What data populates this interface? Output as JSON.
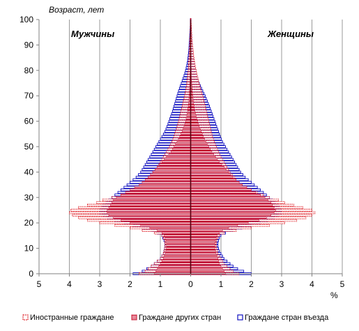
{
  "chart_data": {
    "type": "bar",
    "orientation": "horizontal-population-pyramid",
    "title": "",
    "ylabel": "Возраст, лет",
    "xlabel": "%",
    "left_label": "Мужчины",
    "right_label": "Женщины",
    "xlim": [
      -5,
      5
    ],
    "ylim": [
      0,
      100
    ],
    "x_ticks": [
      "5",
      "4",
      "3",
      "2",
      "1",
      "0",
      "1",
      "2",
      "3",
      "4",
      "5"
    ],
    "x_tick_values": [
      -5,
      -4,
      -3,
      -2,
      -1,
      0,
      1,
      2,
      3,
      4,
      5
    ],
    "y_ticks": [
      "0",
      "10",
      "20",
      "30",
      "40",
      "50",
      "60",
      "70",
      "80",
      "90",
      "100"
    ],
    "y_tick_values": [
      0,
      10,
      20,
      30,
      40,
      50,
      60,
      70,
      80,
      90,
      100
    ],
    "grid": "vertical",
    "legend_position": "bottom",
    "ages_anchor": [
      0,
      1,
      2,
      3,
      4,
      5,
      6,
      7,
      8,
      9,
      10,
      11,
      12,
      13,
      14,
      15,
      16,
      17,
      18,
      19,
      20,
      21,
      22,
      23,
      24,
      25,
      26,
      27,
      28,
      29,
      30,
      31,
      32,
      33,
      34,
      35,
      36,
      37,
      38,
      40,
      42,
      44,
      46,
      48,
      50,
      52,
      54,
      56,
      58,
      60,
      62,
      64,
      66,
      68,
      70,
      72,
      74,
      76,
      78,
      80,
      82,
      84,
      86,
      88,
      90,
      92,
      94,
      96,
      98,
      100
    ],
    "series": [
      {
        "name": "Иностранные граждане",
        "color": "#d9000a",
        "style": "dashed-outline",
        "male": [
          1.7,
          1.5,
          1.4,
          1.3,
          1.2,
          1.1,
          1.0,
          0.95,
          0.9,
          0.88,
          0.86,
          0.85,
          0.85,
          0.86,
          0.9,
          0.95,
          1.2,
          1.6,
          2.0,
          2.5,
          3.0,
          3.4,
          3.7,
          3.9,
          4.0,
          3.95,
          3.7,
          3.4,
          3.1,
          2.9,
          2.6,
          2.3,
          2.1,
          1.9,
          1.7,
          1.6,
          1.5,
          1.45,
          1.4,
          1.25,
          1.1,
          1.0,
          0.9,
          0.8,
          0.7,
          0.62,
          0.55,
          0.5,
          0.45,
          0.4,
          0.36,
          0.32,
          0.28,
          0.24,
          0.2,
          0.17,
          0.14,
          0.12,
          0.1,
          0.08,
          0.07,
          0.06,
          0.05,
          0.04,
          0.03,
          0.03,
          0.02,
          0.02,
          0.01,
          0.01
        ],
        "female": [
          1.6,
          1.4,
          1.3,
          1.2,
          1.1,
          1.05,
          1.0,
          0.95,
          0.9,
          0.88,
          0.86,
          0.85,
          0.85,
          0.86,
          0.9,
          0.95,
          1.1,
          1.5,
          2.0,
          2.6,
          3.1,
          3.5,
          3.8,
          4.0,
          4.1,
          4.0,
          3.7,
          3.4,
          3.1,
          2.9,
          2.6,
          2.4,
          2.2,
          2.0,
          1.85,
          1.7,
          1.6,
          1.5,
          1.45,
          1.3,
          1.2,
          1.1,
          1.0,
          0.92,
          0.85,
          0.78,
          0.72,
          0.68,
          0.64,
          0.6,
          0.56,
          0.52,
          0.48,
          0.44,
          0.4,
          0.35,
          0.3,
          0.26,
          0.22,
          0.18,
          0.15,
          0.12,
          0.1,
          0.08,
          0.06,
          0.05,
          0.04,
          0.03,
          0.02,
          0.01
        ]
      },
      {
        "name": "Граждане других стран",
        "color": "#c8102e",
        "style": "hatched-fill",
        "male": [
          1.2,
          1.15,
          1.1,
          1.05,
          1.0,
          0.95,
          0.9,
          0.87,
          0.84,
          0.82,
          0.8,
          0.8,
          0.8,
          0.82,
          0.85,
          0.88,
          0.95,
          1.1,
          1.35,
          1.65,
          2.0,
          2.3,
          2.55,
          2.7,
          2.75,
          2.75,
          2.7,
          2.65,
          2.6,
          2.55,
          2.45,
          2.3,
          2.15,
          2.0,
          1.85,
          1.7,
          1.6,
          1.5,
          1.4,
          1.25,
          1.1,
          0.95,
          0.8,
          0.65,
          0.55,
          0.45,
          0.36,
          0.28,
          0.22,
          0.17,
          0.13,
          0.1,
          0.08,
          0.06,
          0.05,
          0.04,
          0.03,
          0.02,
          0.02,
          0.01,
          0.01,
          0.01,
          0.01,
          0.0,
          0.0,
          0.0,
          0.0,
          0.0,
          0.0,
          0.0
        ],
        "female": [
          1.15,
          1.1,
          1.05,
          1.0,
          0.95,
          0.92,
          0.9,
          0.87,
          0.84,
          0.82,
          0.8,
          0.8,
          0.8,
          0.82,
          0.85,
          0.88,
          0.95,
          1.05,
          1.25,
          1.55,
          1.9,
          2.25,
          2.5,
          2.65,
          2.75,
          2.8,
          2.75,
          2.7,
          2.65,
          2.55,
          2.45,
          2.3,
          2.15,
          2.0,
          1.85,
          1.7,
          1.6,
          1.5,
          1.4,
          1.25,
          1.1,
          0.95,
          0.82,
          0.7,
          0.6,
          0.5,
          0.42,
          0.35,
          0.28,
          0.23,
          0.18,
          0.14,
          0.11,
          0.09,
          0.07,
          0.05,
          0.04,
          0.03,
          0.02,
          0.02,
          0.01,
          0.01,
          0.01,
          0.0,
          0.0,
          0.0,
          0.0,
          0.0,
          0.0,
          0.0
        ]
      },
      {
        "name": "Граждане стран въезда",
        "color": "#1010c0",
        "style": "outline",
        "male": [
          1.9,
          1.6,
          1.45,
          1.3,
          1.2,
          1.1,
          1.0,
          0.95,
          0.9,
          0.88,
          0.86,
          0.85,
          0.85,
          0.88,
          0.92,
          0.95,
          1.1,
          1.3,
          1.6,
          1.9,
          2.2,
          2.5,
          2.75,
          2.9,
          3.0,
          3.0,
          2.95,
          2.9,
          2.8,
          2.7,
          2.6,
          2.5,
          2.4,
          2.3,
          2.2,
          2.1,
          2.0,
          1.9,
          1.8,
          1.65,
          1.55,
          1.45,
          1.35,
          1.25,
          1.15,
          1.05,
          0.95,
          0.85,
          0.78,
          0.72,
          0.66,
          0.6,
          0.55,
          0.5,
          0.45,
          0.4,
          0.34,
          0.28,
          0.22,
          0.17,
          0.13,
          0.1,
          0.08,
          0.06,
          0.05,
          0.04,
          0.03,
          0.02,
          0.01,
          0.01
        ],
        "female": [
          2.0,
          1.75,
          1.55,
          1.4,
          1.3,
          1.2,
          1.1,
          1.05,
          1.0,
          0.95,
          0.92,
          0.9,
          0.9,
          0.92,
          0.95,
          1.0,
          1.15,
          1.4,
          1.7,
          2.0,
          2.3,
          2.55,
          2.75,
          2.9,
          3.0,
          3.0,
          2.95,
          2.9,
          2.8,
          2.7,
          2.6,
          2.5,
          2.4,
          2.3,
          2.2,
          2.1,
          2.0,
          1.9,
          1.8,
          1.65,
          1.55,
          1.45,
          1.35,
          1.25,
          1.15,
          1.05,
          0.98,
          0.92,
          0.86,
          0.8,
          0.74,
          0.68,
          0.62,
          0.55,
          0.48,
          0.4,
          0.32,
          0.25,
          0.2,
          0.16,
          0.13,
          0.1,
          0.08,
          0.06,
          0.05,
          0.04,
          0.03,
          0.02,
          0.01,
          0.01
        ]
      }
    ]
  }
}
